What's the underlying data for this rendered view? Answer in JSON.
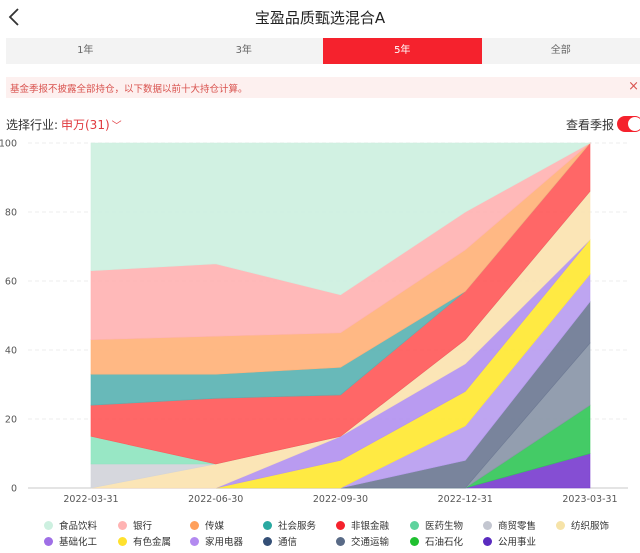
{
  "header": {
    "title": "宝盈品质甄选混合A",
    "back_icon": "back-arrow-icon"
  },
  "tabs": [
    {
      "label": "1年",
      "active": false
    },
    {
      "label": "3年",
      "active": false
    },
    {
      "label": "5年",
      "active": true
    },
    {
      "label": "全部",
      "active": false
    }
  ],
  "notice": {
    "text": "基金季报不披露全部持仓，以下数据以前十大持仓计算。",
    "close": "×"
  },
  "filter": {
    "label": "选择行业:",
    "value": "申万(31)",
    "chevron_icon": "chevron-down-icon"
  },
  "quarterly": {
    "label": "查看季报",
    "enabled": true
  },
  "colors": {
    "accent": "#f5222d",
    "notice_text": "#d9534f"
  },
  "chart_data": {
    "type": "area",
    "stacked": true,
    "x": [
      "2022-03-31",
      "2022-06-30",
      "2022-09-30",
      "2022-12-31",
      "2023-03-31"
    ],
    "ylim": [
      0,
      100
    ],
    "yticks": [
      0,
      20,
      40,
      60,
      80,
      100
    ],
    "grid": true,
    "series": [
      {
        "name": "公用事业",
        "color": "#7b3fcf",
        "values": [
          0,
          0,
          0,
          0,
          10
        ]
      },
      {
        "name": "石油石化",
        "color": "#34c759",
        "values": [
          0,
          0,
          0,
          0,
          14
        ]
      },
      {
        "name": "交通运输",
        "color": "#8a96a8",
        "values": [
          0,
          0,
          0,
          0,
          18
        ]
      },
      {
        "name": "通信",
        "color": "#6e7a94",
        "values": [
          0,
          0,
          0,
          8,
          12
        ]
      },
      {
        "name": "家用电器",
        "color": "#b89df0",
        "values": [
          0,
          0,
          0,
          10,
          8
        ]
      },
      {
        "name": "有色金属",
        "color": "#ffe833",
        "values": [
          0,
          0,
          8,
          10,
          10
        ]
      },
      {
        "name": "基础化工",
        "color": "#b392f0",
        "values": [
          0,
          0,
          7,
          8,
          0
        ]
      },
      {
        "name": "纺织服饰",
        "color": "#fbe3b0",
        "values": [
          0,
          7,
          0,
          7,
          14
        ]
      },
      {
        "name": "商贸零售",
        "color": "#d2d4da",
        "values": [
          7,
          0,
          0,
          0,
          0
        ]
      },
      {
        "name": "医药生物",
        "color": "#8fe5c0",
        "values": [
          8,
          0,
          0,
          0,
          0
        ]
      },
      {
        "name": "非银金融",
        "color": "#ff5a5a",
        "values": [
          9,
          19,
          12,
          14,
          14
        ]
      },
      {
        "name": "社会服务",
        "color": "#5bb3b3",
        "values": [
          9,
          7,
          8,
          0,
          0
        ]
      },
      {
        "name": "传媒",
        "color": "#ffb27a",
        "values": [
          10,
          11,
          10,
          12,
          0
        ]
      },
      {
        "name": "银行",
        "color": "#ffb3b3",
        "values": [
          20,
          21,
          11,
          11,
          0
        ]
      },
      {
        "name": "食品饮料",
        "color": "#cdf0e0",
        "values": [
          37,
          35,
          44,
          20,
          0
        ]
      }
    ]
  },
  "legend": [
    {
      "name": "食品饮料",
      "color": "#cdf0e0"
    },
    {
      "name": "银行",
      "color": "#ffb3b3"
    },
    {
      "name": "传媒",
      "color": "#ffa05c"
    },
    {
      "name": "社会服务",
      "color": "#2aa9a1"
    },
    {
      "name": "非银金融",
      "color": "#f5222d"
    },
    {
      "name": "医药生物",
      "color": "#5fd39e"
    },
    {
      "name": "商贸零售",
      "color": "#c3c6d0"
    },
    {
      "name": "纺织服饰",
      "color": "#f6e3a8"
    },
    {
      "name": "基础化工",
      "color": "#9f6fe6"
    },
    {
      "name": "有色金属",
      "color": "#ffe12e"
    },
    {
      "name": "家用电器",
      "color": "#b38af0"
    },
    {
      "name": "通信",
      "color": "#344f76"
    },
    {
      "name": "交通运输",
      "color": "#596a86"
    },
    {
      "name": "石油石化",
      "color": "#20c030"
    },
    {
      "name": "公用事业",
      "color": "#5a2bbf"
    }
  ]
}
